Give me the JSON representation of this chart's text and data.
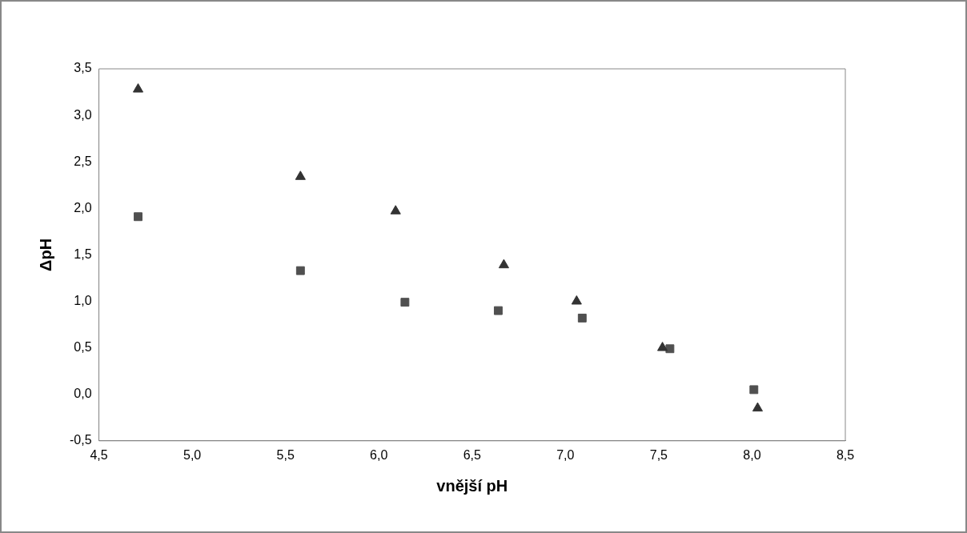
{
  "chart_data": {
    "type": "scatter",
    "xlabel": "vnější pH",
    "ylabel": "ΔpH",
    "grid": false,
    "legend": false,
    "xlim": [
      4.5,
      8.5
    ],
    "xticks": [
      {
        "value": 4.5,
        "label": "4,5"
      },
      {
        "value": 5,
        "label": "5,0"
      },
      {
        "value": 5.5,
        "label": "5,5"
      },
      {
        "value": 6,
        "label": "6,0"
      },
      {
        "value": 6.5,
        "label": "6,5"
      },
      {
        "value": 7,
        "label": "7,0"
      },
      {
        "value": 7.5,
        "label": "7,5"
      },
      {
        "value": 8,
        "label": "8,0"
      },
      {
        "value": 8.5,
        "label": "8,5"
      }
    ],
    "ylim": [
      -0.5,
      3.5
    ],
    "yticks": [
      {
        "value": -0.5,
        "label": "-0,5"
      },
      {
        "value": 0,
        "label": "0,0"
      },
      {
        "value": 0.5,
        "label": "0,5"
      },
      {
        "value": 1,
        "label": "1,0"
      },
      {
        "value": 1.5,
        "label": "1,5"
      },
      {
        "value": 2,
        "label": "2,0"
      },
      {
        "value": 2.5,
        "label": "2,5"
      },
      {
        "value": 3,
        "label": "3,0"
      },
      {
        "value": 3.5,
        "label": "3,5"
      }
    ],
    "series": [
      {
        "color": "#333333",
        "marker": "triangle",
        "x": [
          4.71,
          5.58,
          6.09,
          6.67,
          7.06,
          7.52,
          8.03
        ],
        "values": [
          3.28,
          2.34,
          1.97,
          1.39,
          1.0,
          0.5,
          -0.15
        ]
      },
      {
        "color": "#505050",
        "marker": "square",
        "x": [
          4.71,
          5.58,
          6.14,
          6.64,
          7.09,
          7.56,
          8.01
        ],
        "values": [
          1.91,
          1.33,
          0.99,
          0.9,
          0.82,
          0.49,
          0.05
        ]
      }
    ]
  }
}
